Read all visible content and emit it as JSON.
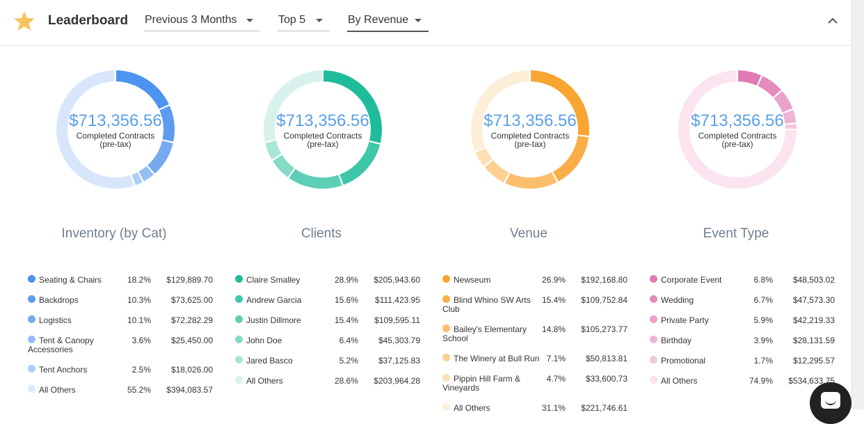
{
  "header": {
    "title": "Leaderboard",
    "filters": [
      {
        "label": "Previous 3 Months"
      },
      {
        "label": "Top 5"
      },
      {
        "label": "By Revenue"
      }
    ]
  },
  "columns": [
    {
      "title": "Inventory (by Cat)",
      "center_value": "$713,356.56",
      "center_label_1": "Completed Contracts",
      "center_label_2": "(pre-tax)",
      "ring_color": "#d7e6fb",
      "rows": [
        {
          "name": "Seating & Chairs",
          "pct": "18.2%",
          "amount": "$129,889.70",
          "color": "#4d93f0"
        },
        {
          "name": "Backdrops",
          "pct": "10.3%",
          "amount": "$73,625.00",
          "color": "#5d9cf0"
        },
        {
          "name": "Logistics",
          "pct": "10.1%",
          "amount": "$72,282.29",
          "color": "#75aaf1"
        },
        {
          "name": "Tent & Canopy Accessories",
          "pct": "3.6%",
          "amount": "$25,450.00",
          "color": "#95bef4"
        },
        {
          "name": "Tent Anchors",
          "pct": "2.5%",
          "amount": "$18,026.00",
          "color": "#aecdf6"
        },
        {
          "name": "All Others",
          "pct": "55.2%",
          "amount": "$394,083.57",
          "color": "#dde9fb"
        }
      ]
    },
    {
      "title": "Clients",
      "center_value": "$713,356.56",
      "center_label_1": "Completed Contracts",
      "center_label_2": "(pre-tax)",
      "ring_color": "#d8f1ec",
      "rows": [
        {
          "name": "Claire Smalley",
          "pct": "28.9%",
          "amount": "$205,943.60",
          "color": "#1fbc9c"
        },
        {
          "name": "Andrew Garcia",
          "pct": "15.6%",
          "amount": "$111,423.95",
          "color": "#3ec7a9"
        },
        {
          "name": "Justin Dillmore",
          "pct": "15.4%",
          "amount": "$109,595.11",
          "color": "#5ccfb6"
        },
        {
          "name": "John Doe",
          "pct": "6.4%",
          "amount": "$45,303.79",
          "color": "#86dbc7"
        },
        {
          "name": "Jared Basco",
          "pct": "5.2%",
          "amount": "$37,125.83",
          "color": "#a8e5d7"
        },
        {
          "name": "All Others",
          "pct": "28.6%",
          "amount": "$203,964.28",
          "color": "#dcf3ed"
        }
      ]
    },
    {
      "title": "Venue",
      "center_value": "$713,356.56",
      "center_label_1": "Completed Contracts",
      "center_label_2": "(pre-tax)",
      "ring_color": "#fdeed8",
      "rows": [
        {
          "name": "Newseum",
          "pct": "26.9%",
          "amount": "$192,168.80",
          "color": "#f9a531"
        },
        {
          "name": "Blind Whino SW Arts Club",
          "pct": "15.4%",
          "amount": "$109,752.84",
          "color": "#faae48"
        },
        {
          "name": "Bailey's Elementary School",
          "pct": "14.8%",
          "amount": "$105,273.77",
          "color": "#fbbf6c"
        },
        {
          "name": "The Winery at Bull Run",
          "pct": "7.1%",
          "amount": "$50,813.81",
          "color": "#fcd090"
        },
        {
          "name": "Pippin Hill Farm & Vineyards",
          "pct": "4.7%",
          "amount": "$33,600.73",
          "color": "#fde0b5"
        },
        {
          "name": "All Others",
          "pct": "31.1%",
          "amount": "$221,746.61",
          "color": "#feefdc"
        }
      ]
    },
    {
      "title": "Event Type",
      "center_value": "$713,356.56",
      "center_label_1": "Completed Contracts",
      "center_label_2": "(pre-tax)",
      "ring_color": "#fbe3ef",
      "rows": [
        {
          "name": "Corporate Event",
          "pct": "6.8%",
          "amount": "$48,503.02",
          "color": "#e07bb4"
        },
        {
          "name": "Wedding",
          "pct": "6.7%",
          "amount": "$47,573.30",
          "color": "#e48bbd"
        },
        {
          "name": "Private Party",
          "pct": "5.9%",
          "amount": "$42,219.33",
          "color": "#e9a2c9"
        },
        {
          "name": "Birthday",
          "pct": "3.9%",
          "amount": "$28,131.59",
          "color": "#eeb6d4"
        },
        {
          "name": "Promotional",
          "pct": "1.7%",
          "amount": "$12,295.57",
          "color": "#f2c8df"
        },
        {
          "name": "All Others",
          "pct": "74.9%",
          "amount": "$534,633.75",
          "color": "#f9e1ed"
        }
      ]
    }
  ],
  "colors": {
    "center_value": "#5aa0e8",
    "column_title": "#6f7f8f",
    "star": "#f7c35c"
  },
  "icons": {
    "star": "star-icon",
    "collapse": "chevron-up-icon",
    "chat": "chat-icon"
  }
}
